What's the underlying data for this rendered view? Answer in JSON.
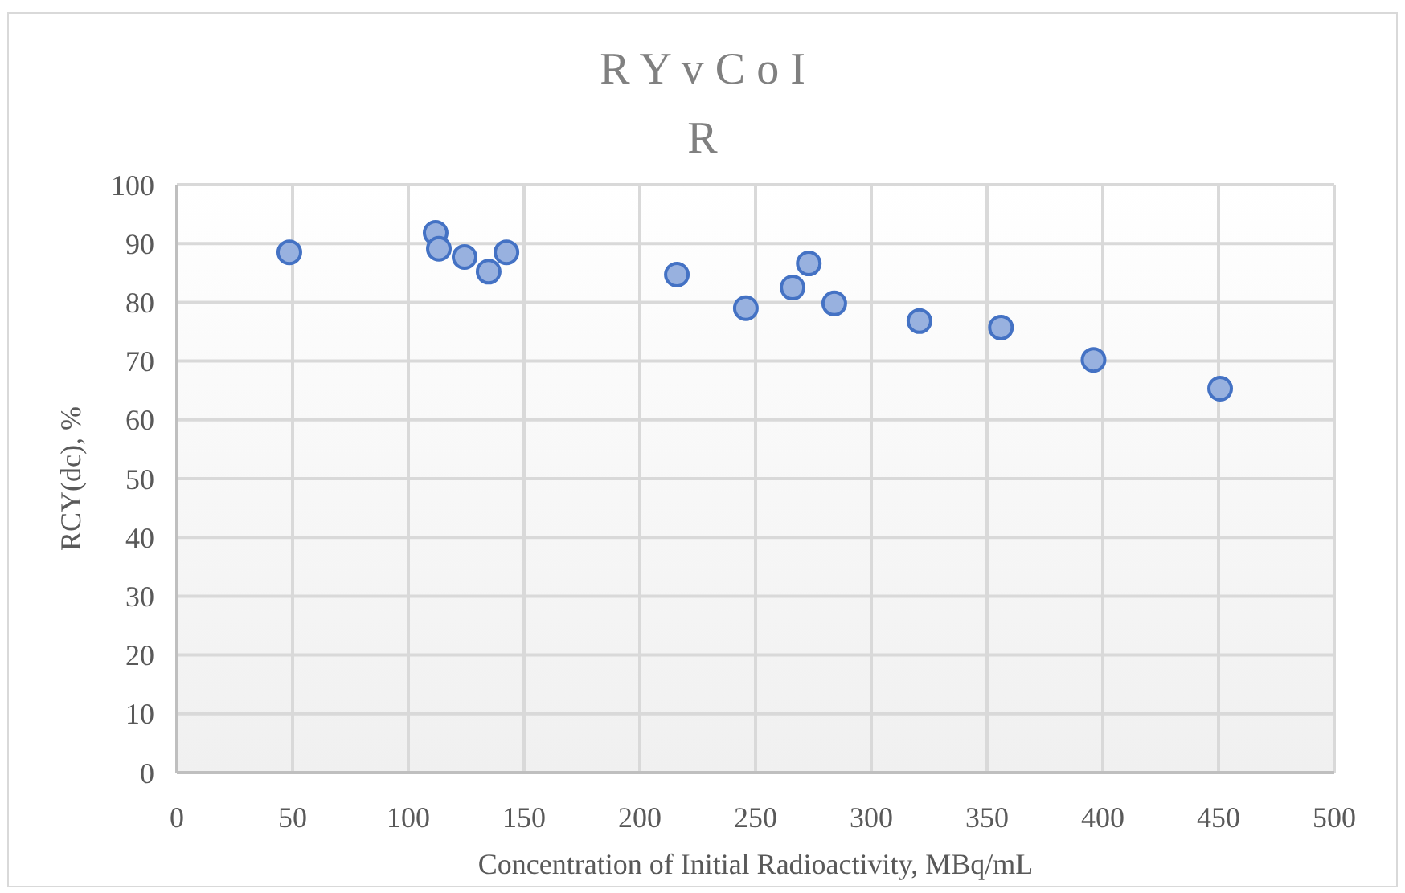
{
  "chart_data": {
    "type": "scatter",
    "title": "R Y v C o I",
    "subtitle": "R",
    "xlabel": "Concentration of Initial Radioactivity, MBq/mL",
    "ylabel": "RCY(dc), %",
    "x": [
      48.6,
      111.8,
      113.2,
      124.3,
      134.7,
      142.4,
      216,
      245.8,
      266,
      273,
      284,
      320.8,
      356,
      396,
      450.7
    ],
    "series": [
      {
        "color": "#4472c4",
        "values": [
          88.5,
          91.8,
          89.1,
          87.7,
          85.2,
          88.5,
          84.7,
          79,
          82.5,
          86.6,
          79.8,
          76.8,
          75.7,
          70.2,
          65.3
        ]
      }
    ],
    "xlim": [
      0,
      500
    ],
    "xticks": [
      0,
      50,
      100,
      150,
      200,
      250,
      300,
      350,
      400,
      450,
      500
    ],
    "ylim": [
      0,
      100
    ],
    "yticks": [
      0,
      10,
      20,
      30,
      40,
      50,
      60,
      70,
      80,
      90,
      100
    ],
    "grid": true,
    "marker": "circle"
  }
}
